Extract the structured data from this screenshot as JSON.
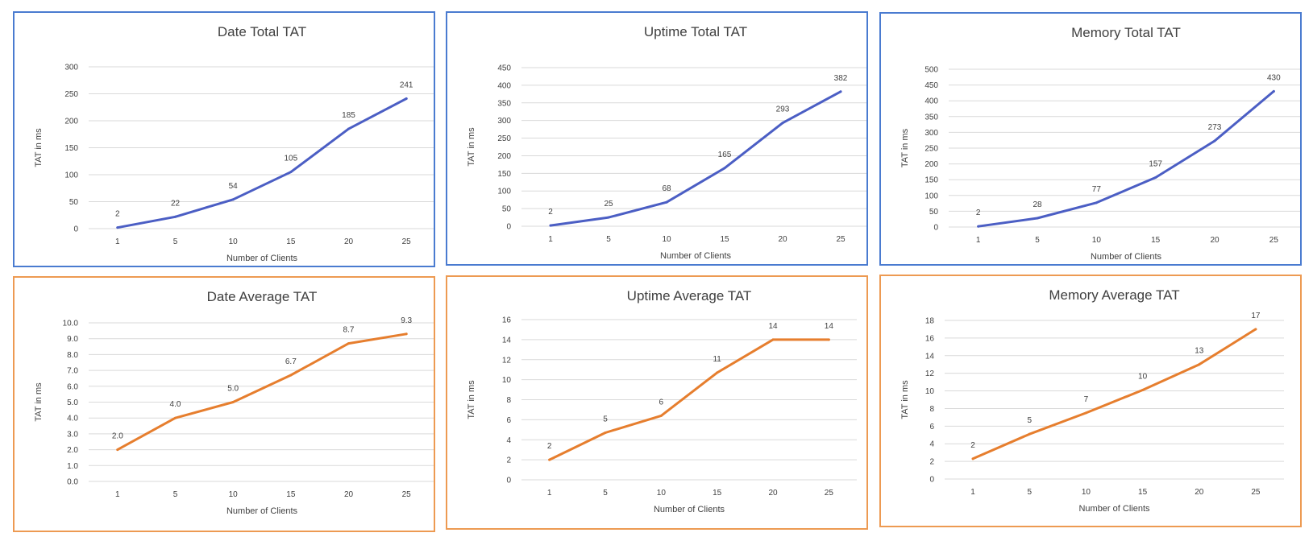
{
  "chart_data": [
    {
      "type": "line",
      "title": "Date Total TAT",
      "xlabel": "Number of Clients",
      "ylabel": "TAT in ms",
      "categories": [
        "1",
        "5",
        "10",
        "15",
        "20",
        "25"
      ],
      "values": [
        2,
        22,
        54,
        105,
        185,
        241
      ],
      "data_labels": [
        "2",
        "22",
        "54",
        "105",
        "185",
        "241"
      ],
      "yticks": [
        "0",
        "50",
        "100",
        "150",
        "200",
        "250",
        "300"
      ],
      "ylim": [
        0,
        300
      ],
      "grid": true,
      "line_color": "#4b5ec4",
      "border_color": "#4a7bd0"
    },
    {
      "type": "line",
      "title": "Uptime Total TAT",
      "xlabel": "Number of Clients",
      "ylabel": "TAT in ms",
      "categories": [
        "1",
        "5",
        "10",
        "15",
        "20",
        "25"
      ],
      "values": [
        2,
        25,
        68,
        165,
        293,
        382
      ],
      "data_labels": [
        "2",
        "25",
        "68",
        "165",
        "293",
        "382"
      ],
      "yticks": [
        "0",
        "50",
        "100",
        "150",
        "200",
        "250",
        "300",
        "350",
        "400",
        "450"
      ],
      "ylim": [
        0,
        450
      ],
      "grid": true,
      "line_color": "#4b5ec4",
      "border_color": "#4a7bd0"
    },
    {
      "type": "line",
      "title": "Memory Total TAT",
      "xlabel": "Number of Clients",
      "ylabel": "TAT in ms",
      "categories": [
        "1",
        "5",
        "10",
        "15",
        "20",
        "25"
      ],
      "values": [
        2,
        28,
        77,
        157,
        273,
        430
      ],
      "data_labels": [
        "2",
        "28",
        "77",
        "157",
        "273",
        "430"
      ],
      "yticks": [
        "0",
        "50",
        "100",
        "150",
        "200",
        "250",
        "300",
        "350",
        "400",
        "450",
        "500"
      ],
      "ylim": [
        0,
        500
      ],
      "grid": true,
      "line_color": "#4b5ec4",
      "border_color": "#4a7bd0"
    },
    {
      "type": "line",
      "title": "Date Average TAT",
      "xlabel": "Number of Clients",
      "ylabel": "TAT in ms",
      "categories": [
        "1",
        "5",
        "10",
        "15",
        "20",
        "25"
      ],
      "values": [
        2.0,
        4.0,
        5.0,
        6.7,
        8.7,
        9.3
      ],
      "data_labels": [
        "2.0",
        "4.0",
        "5.0",
        "6.7",
        "8.7",
        "9.3"
      ],
      "yticks": [
        "0.0",
        "1.0",
        "2.0",
        "3.0",
        "4.0",
        "5.0",
        "6.0",
        "7.0",
        "8.0",
        "9.0",
        "10.0"
      ],
      "ylim": [
        0,
        10
      ],
      "grid": true,
      "line_color": "#e67e2e",
      "border_color": "#ed9a52"
    },
    {
      "type": "line",
      "title": "Uptime Average TAT",
      "xlabel": "Number of Clients",
      "ylabel": "TAT in ms",
      "categories": [
        "1",
        "5",
        "10",
        "15",
        "20",
        "25"
      ],
      "values": [
        2,
        4.7,
        6.4,
        10.7,
        14,
        14
      ],
      "data_labels": [
        "2",
        "5",
        "6",
        "11",
        "14",
        "14"
      ],
      "yticks": [
        "0",
        "2",
        "4",
        "6",
        "8",
        "10",
        "12",
        "14",
        "16"
      ],
      "ylim": [
        0,
        16
      ],
      "grid": true,
      "line_color": "#e67e2e",
      "border_color": "#ed9a52"
    },
    {
      "type": "line",
      "title": "Memory Average TAT",
      "xlabel": "Number of Clients",
      "ylabel": "TAT in ms",
      "categories": [
        "1",
        "5",
        "10",
        "15",
        "20",
        "25"
      ],
      "values": [
        2.3,
        5.1,
        7.5,
        10.1,
        13,
        17
      ],
      "data_labels": [
        "2",
        "5",
        "7",
        "10",
        "13",
        "17"
      ],
      "yticks": [
        "0",
        "2",
        "4",
        "6",
        "8",
        "10",
        "12",
        "14",
        "16",
        "18"
      ],
      "ylim": [
        0,
        18
      ],
      "grid": true,
      "line_color": "#e67e2e",
      "border_color": "#ed9a52"
    }
  ]
}
